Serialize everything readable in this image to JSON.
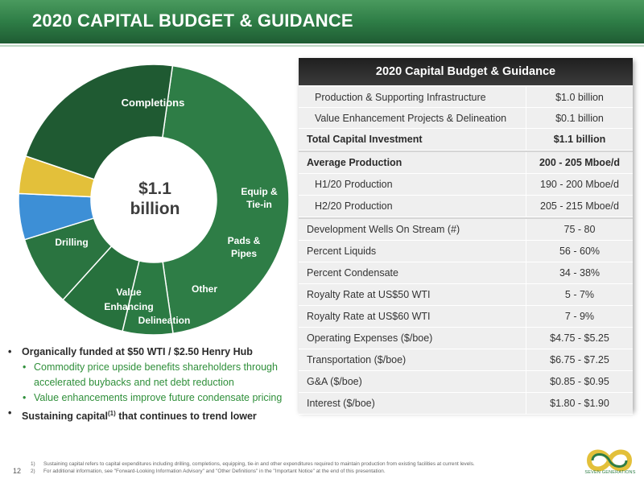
{
  "header": {
    "title": "2020 CAPITAL BUDGET & GUIDANCE"
  },
  "chart_data": {
    "type": "pie",
    "center_label": [
      "$1.1",
      "billion"
    ],
    "slices": [
      {
        "name": "Completions",
        "value": 45.5,
        "color": "#2e7d46"
      },
      {
        "name": "Equip & Tie-in",
        "value": 6,
        "color": "#2b7a43"
      },
      {
        "name": "Pads & Pipes",
        "value": 8,
        "color": "#27713d"
      },
      {
        "name": "Other",
        "value": 8.5,
        "color": "#2a7440"
      },
      {
        "name": "Delineation",
        "value": 5.5,
        "color": "#3d8fd6"
      },
      {
        "name": "Value Enhancing",
        "value": 4.5,
        "color": "#e3c03a"
      },
      {
        "name": "Drilling",
        "value": 22,
        "color": "#1f5a32"
      }
    ]
  },
  "labels": {
    "completions": "Completions",
    "equip_1": "Equip &",
    "equip_2": "Tie-in",
    "pads_1": "Pads &",
    "pads_2": "Pipes",
    "other": "Other",
    "delineation": "Delineation",
    "value_1": "Value",
    "value_2": "Enhancing",
    "drilling": "Drilling"
  },
  "bullets": {
    "b1": "Organically funded at $50 WTI / $2.50 Henry Hub",
    "b1a": "Commodity price upside benefits shareholders through accelerated buybacks and net debt reduction",
    "b1b": "Value enhancements improve future condensate pricing",
    "b2_pre": "Sustaining capital",
    "b2_sup": "(1)",
    "b2_post": " that continues to trend lower"
  },
  "table": {
    "title": "2020 Capital Budget & Guidance",
    "capital": [
      {
        "label": "Production & Supporting Infrastructure",
        "value": "$1.0 billion"
      },
      {
        "label": "Value Enhancement Projects & Delineation",
        "value": "$0.1 billion"
      }
    ],
    "total": {
      "label": "Total Capital Investment",
      "value": "$1.1 billion"
    },
    "production": {
      "label": "Average Production",
      "value": "200 - 205 Mboe/d"
    },
    "production_rows": [
      {
        "label": "H1/20 Production",
        "value": "190 - 200 Mboe/d"
      },
      {
        "label": "H2/20 Production",
        "value": "205 - 215 Mboe/d"
      }
    ],
    "guidance": [
      {
        "label": "Development Wells On Stream (#)",
        "value": "75 - 80"
      },
      {
        "label": "Percent Liquids",
        "value": "56 - 60%"
      },
      {
        "label": "Percent Condensate",
        "value": "34 - 38%"
      },
      {
        "label": "Royalty Rate at US$50 WTI",
        "value": "5 - 7%"
      },
      {
        "label": "Royalty Rate at US$60 WTI",
        "value": "7 - 9%"
      },
      {
        "label": "Operating Expenses ($/boe)",
        "value": "$4.75 - $5.25"
      },
      {
        "label": "Transportation ($/boe)",
        "value": "$6.75 - $7.25"
      },
      {
        "label": "G&A ($/boe)",
        "value": "$0.85 - $0.95"
      },
      {
        "label": "Interest ($/boe)",
        "value": "$1.80 - $1.90"
      }
    ]
  },
  "footer": {
    "page": "12",
    "fn1_num": "1)",
    "fn1": "Sustaining capital refers to capital expenditures including drilling, completions, equipping, tie-in and other expenditures required to maintain production from existing facilities at current levels.",
    "fn2_num": "2)",
    "fn2": "For additional information, see \"Forward-Looking Information Advisory\" and \"Other Definitions\" in the \"Important Notice\" at the end of this presentation.",
    "logo_text": "SEVEN GENERATIONS"
  }
}
